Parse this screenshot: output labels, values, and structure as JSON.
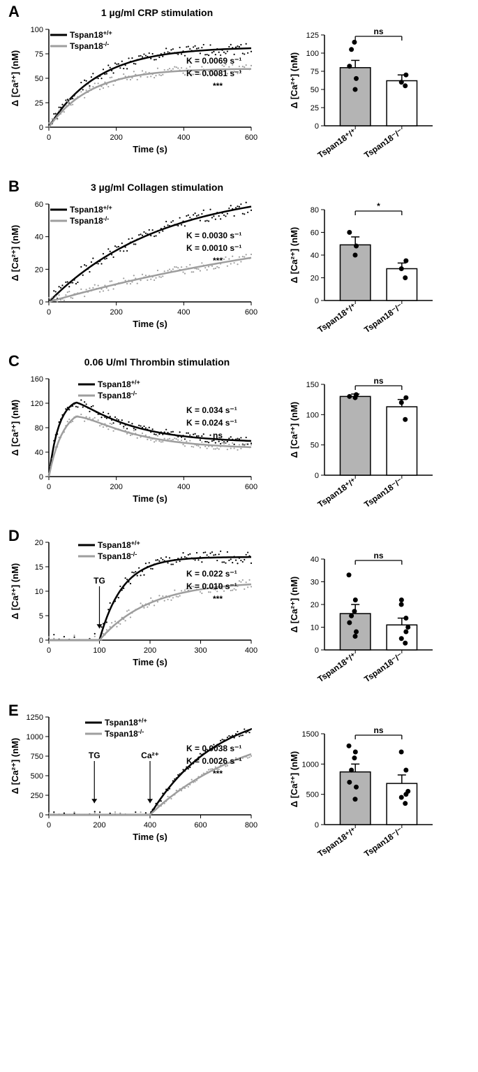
{
  "panels": [
    {
      "letter": "A",
      "title": "1 µg/ml CRP stimulation",
      "scatter": {
        "x_label": "Time (s)",
        "y_label": "Δ [Ca²⁺] (nM)",
        "xlim": [
          0,
          600
        ],
        "xtick_step": 200,
        "ylim": [
          0,
          100
        ],
        "ytick_step": 25,
        "series": [
          {
            "name": "Tspan18+/+",
            "color": "#000000",
            "plateau": 82,
            "k": 0.0069,
            "k_text": "K = 0.0069 s⁻¹",
            "scatter_noise": 6
          },
          {
            "name": "Tspan18-/-",
            "color": "#9e9e9e",
            "plateau": 60,
            "k": 0.0081,
            "k_text": "K = 0.0081 s⁻¹",
            "scatter_noise": 5
          }
        ],
        "sig_text": "***",
        "legend_pos": {
          "x": 80,
          "y": 18
        }
      },
      "bar": {
        "y_label": "Δ [Ca²⁺] (nM)",
        "ylim": [
          0,
          125
        ],
        "ytick_step": 25,
        "groups": [
          {
            "label": "Tspan18⁺/⁺",
            "mean": 80,
            "sem": 10,
            "points": [
              50,
              65,
              82,
              105,
              115
            ],
            "fill": "#b4b4b4",
            "dot_color": "#000000"
          },
          {
            "label": "Tspan18⁻/⁻",
            "mean": 62,
            "sem": 8,
            "points": [
              55,
              60,
              70
            ],
            "fill": "#ffffff",
            "dot_color": "#000000"
          }
        ],
        "sig_text": "ns"
      }
    },
    {
      "letter": "B",
      "title": "3 µg/ml Collagen stimulation",
      "scatter": {
        "x_label": "Time (s)",
        "y_label": "Δ [Ca²⁺] (nM)",
        "xlim": [
          0,
          600
        ],
        "xtick_step": 200,
        "ylim": [
          0,
          60
        ],
        "ytick_step": 20,
        "series": [
          {
            "name": "Tspan18+/+",
            "color": "#000000",
            "plateau": 70,
            "k": 0.003,
            "k_text": "K = 0.0030 s⁻¹",
            "scatter_noise": 4
          },
          {
            "name": "Tspan18-/-",
            "color": "#9e9e9e",
            "plateau": 60,
            "k": 0.001,
            "k_text": "K = 0.0010 s⁻¹",
            "scatter_noise": 3
          }
        ],
        "sig_text": "***",
        "legend_pos": {
          "x": 80,
          "y": 18
        }
      },
      "bar": {
        "y_label": "Δ [Ca²⁺] (nM)",
        "ylim": [
          0,
          80
        ],
        "ytick_step": 20,
        "groups": [
          {
            "label": "Tspan18⁺/⁺",
            "mean": 49,
            "sem": 7,
            "points": [
              40,
              48,
              60
            ],
            "fill": "#b4b4b4",
            "dot_color": "#000000"
          },
          {
            "label": "Tspan18⁻/⁻",
            "mean": 28,
            "sem": 5,
            "points": [
              20,
              28,
              35
            ],
            "fill": "#ffffff",
            "dot_color": "#000000"
          }
        ],
        "sig_text": "*"
      }
    },
    {
      "letter": "C",
      "title": "0.06 U/ml Thrombin stimulation",
      "scatter": {
        "x_label": "Time (s)",
        "y_label": "Δ [Ca²⁺] (nM)",
        "xlim": [
          0,
          600
        ],
        "xtick_step": 200,
        "ylim": [
          0,
          160
        ],
        "ytick_step": 40,
        "series_type": "peak_decay",
        "series": [
          {
            "name": "Tspan18+/+",
            "color": "#000000",
            "peak": 130,
            "k": 0.034,
            "k_text": "K = 0.034 s⁻¹",
            "decay_to": 55,
            "scatter_noise": 7
          },
          {
            "name": "Tspan18-/-",
            "color": "#9e9e9e",
            "peak": 115,
            "k": 0.024,
            "k_text": "K = 0.024 s⁻¹",
            "decay_to": 45,
            "scatter_noise": 6
          }
        ],
        "sig_text": "ns",
        "legend_pos": {
          "x": 120,
          "y": 18
        }
      },
      "bar": {
        "y_label": "Δ [Ca²⁺] (nM)",
        "ylim": [
          0,
          150
        ],
        "ytick_step": 50,
        "groups": [
          {
            "label": "Tspan18⁺/⁺",
            "mean": 130,
            "sem": 4,
            "points": [
              128,
              133,
              130
            ],
            "fill": "#b4b4b4",
            "dot_color": "#000000"
          },
          {
            "label": "Tspan18⁻/⁻",
            "mean": 113,
            "sem": 12,
            "points": [
              92,
              120,
              128
            ],
            "fill": "#ffffff",
            "dot_color": "#000000"
          }
        ],
        "sig_text": "ns"
      }
    },
    {
      "letter": "D",
      "title": "",
      "scatter": {
        "x_label": "Time (s)",
        "y_label": "Δ [Ca²⁺] (nM)",
        "xlim": [
          0,
          400
        ],
        "xtick_step": 100,
        "ylim": [
          0,
          20
        ],
        "ytick_step": 5,
        "series_type": "delayed_rise",
        "delay": 100,
        "arrows": [
          {
            "x": 100,
            "label": "TG"
          }
        ],
        "series": [
          {
            "name": "Tspan18+/+",
            "color": "#000000",
            "plateau": 17,
            "k": 0.022,
            "k_text": "K = 0.022 s⁻¹",
            "scatter_noise": 1.3
          },
          {
            "name": "Tspan18-/-",
            "color": "#9e9e9e",
            "plateau": 12,
            "k": 0.01,
            "k_text": "K = 0.010 s⁻¹",
            "scatter_noise": 1.0
          }
        ],
        "sig_text": "***",
        "legend_pos": {
          "x": 120,
          "y": 14
        }
      },
      "bar": {
        "y_label": "Δ [Ca²⁺] (nM)",
        "ylim": [
          0,
          40
        ],
        "ytick_step": 10,
        "groups": [
          {
            "label": "Tspan18⁺/⁺",
            "mean": 16,
            "sem": 4,
            "points": [
              6,
              8,
              12,
              15,
              17,
              22,
              33
            ],
            "fill": "#b4b4b4",
            "dot_color": "#000000"
          },
          {
            "label": "Tspan18⁻/⁻",
            "mean": 11,
            "sem": 3,
            "points": [
              3,
              5,
              8,
              10,
              14,
              20,
              22
            ],
            "fill": "#ffffff",
            "dot_color": "#000000"
          }
        ],
        "sig_text": "ns"
      }
    },
    {
      "letter": "E",
      "title": "",
      "scatter": {
        "x_label": "Time (s)",
        "y_label": "Δ [Ca²⁺] (nM)",
        "xlim": [
          0,
          800
        ],
        "xtick_step": 200,
        "ylim": [
          0,
          1250
        ],
        "ytick_step": 250,
        "series_type": "delayed_rise",
        "delay": 400,
        "arrows": [
          {
            "x": 180,
            "label": "TG"
          },
          {
            "x": 400,
            "label": "Ca²⁺"
          }
        ],
        "series": [
          {
            "name": "Tspan18+/+",
            "color": "#000000",
            "plateau": 1400,
            "k": 0.0038,
            "k_text": "K = 0.0038 s⁻¹",
            "scatter_noise": 40
          },
          {
            "name": "Tspan18-/-",
            "color": "#9e9e9e",
            "plateau": 1200,
            "k": 0.0026,
            "k_text": "K = 0.0026 s⁻¹",
            "scatter_noise": 35
          }
        ],
        "sig_text": "***",
        "legend_pos": {
          "x": 130,
          "y": 18
        }
      },
      "bar": {
        "y_label": "Δ [Ca²⁺] (nM)",
        "ylim": [
          0,
          1500
        ],
        "ytick_step": 500,
        "groups": [
          {
            "label": "Tspan18⁺/⁺",
            "mean": 870,
            "sem": 130,
            "points": [
              420,
              620,
              700,
              900,
              1100,
              1200,
              1300
            ],
            "fill": "#b4b4b4",
            "dot_color": "#000000"
          },
          {
            "label": "Tspan18⁻/⁻",
            "mean": 680,
            "sem": 140,
            "points": [
              350,
              450,
              500,
              550,
              900,
              1200
            ],
            "fill": "#ffffff",
            "dot_color": "#000000"
          }
        ],
        "sig_text": "ns"
      }
    }
  ],
  "colors": {
    "axis": "#000000",
    "bg": "#ffffff"
  }
}
